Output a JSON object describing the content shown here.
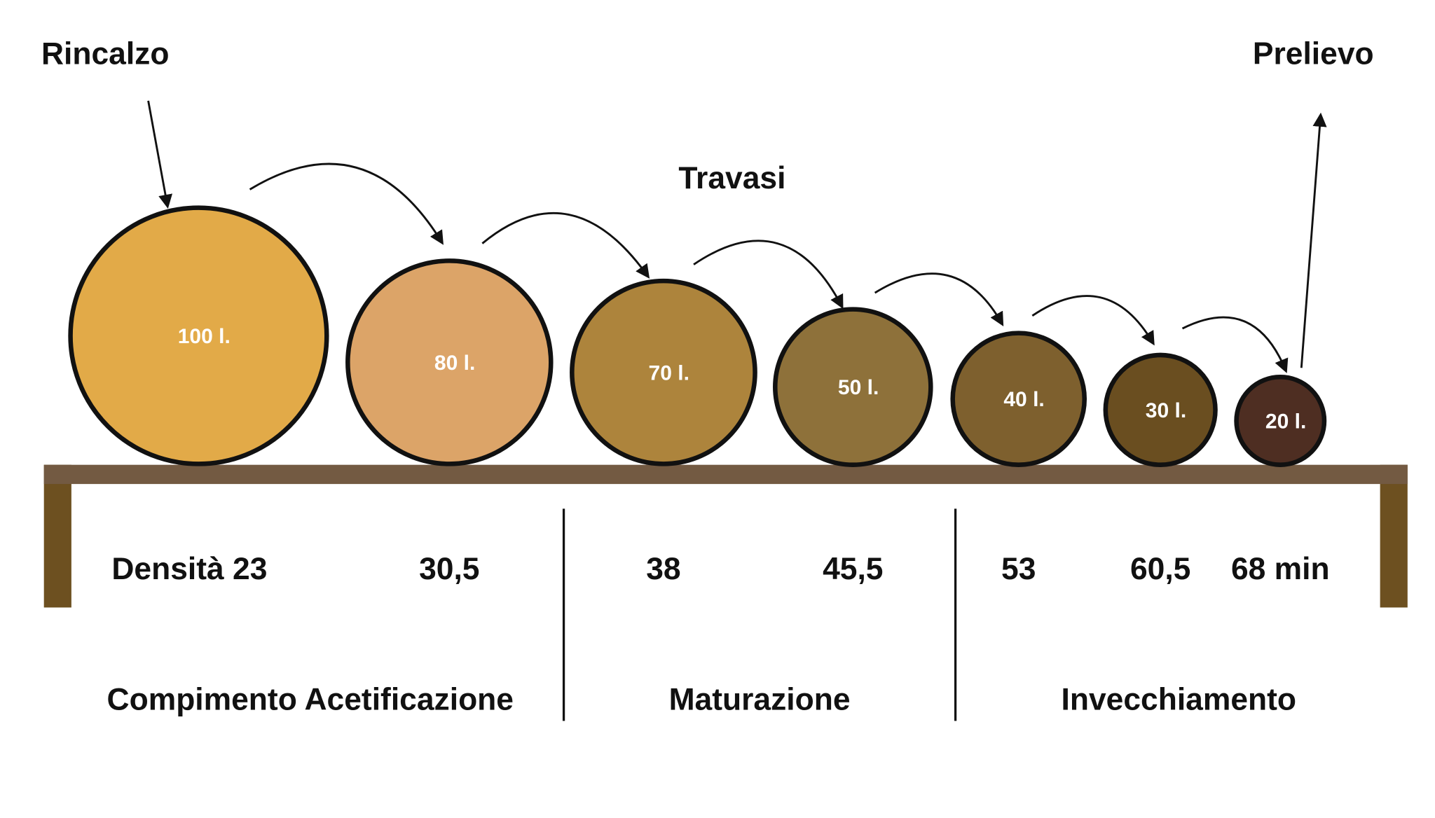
{
  "header": {
    "input": "Rincalzo",
    "output": "Prelievo",
    "transfer": "Travasi"
  },
  "barrels": [
    {
      "label": "100 l.",
      "density": "Densità 23"
    },
    {
      "label": "80 l.",
      "density": "30,5"
    },
    {
      "label": "70 l.",
      "density": "38"
    },
    {
      "label": "50 l.",
      "density": "45,5"
    },
    {
      "label": "40 l.",
      "density": "53"
    },
    {
      "label": "30 l.",
      "density": "60,5"
    },
    {
      "label": "20 l.",
      "density": "68 min"
    }
  ],
  "phases": [
    "Compimento Acetificazione",
    "Maturazione",
    "Invecchiamento"
  ]
}
